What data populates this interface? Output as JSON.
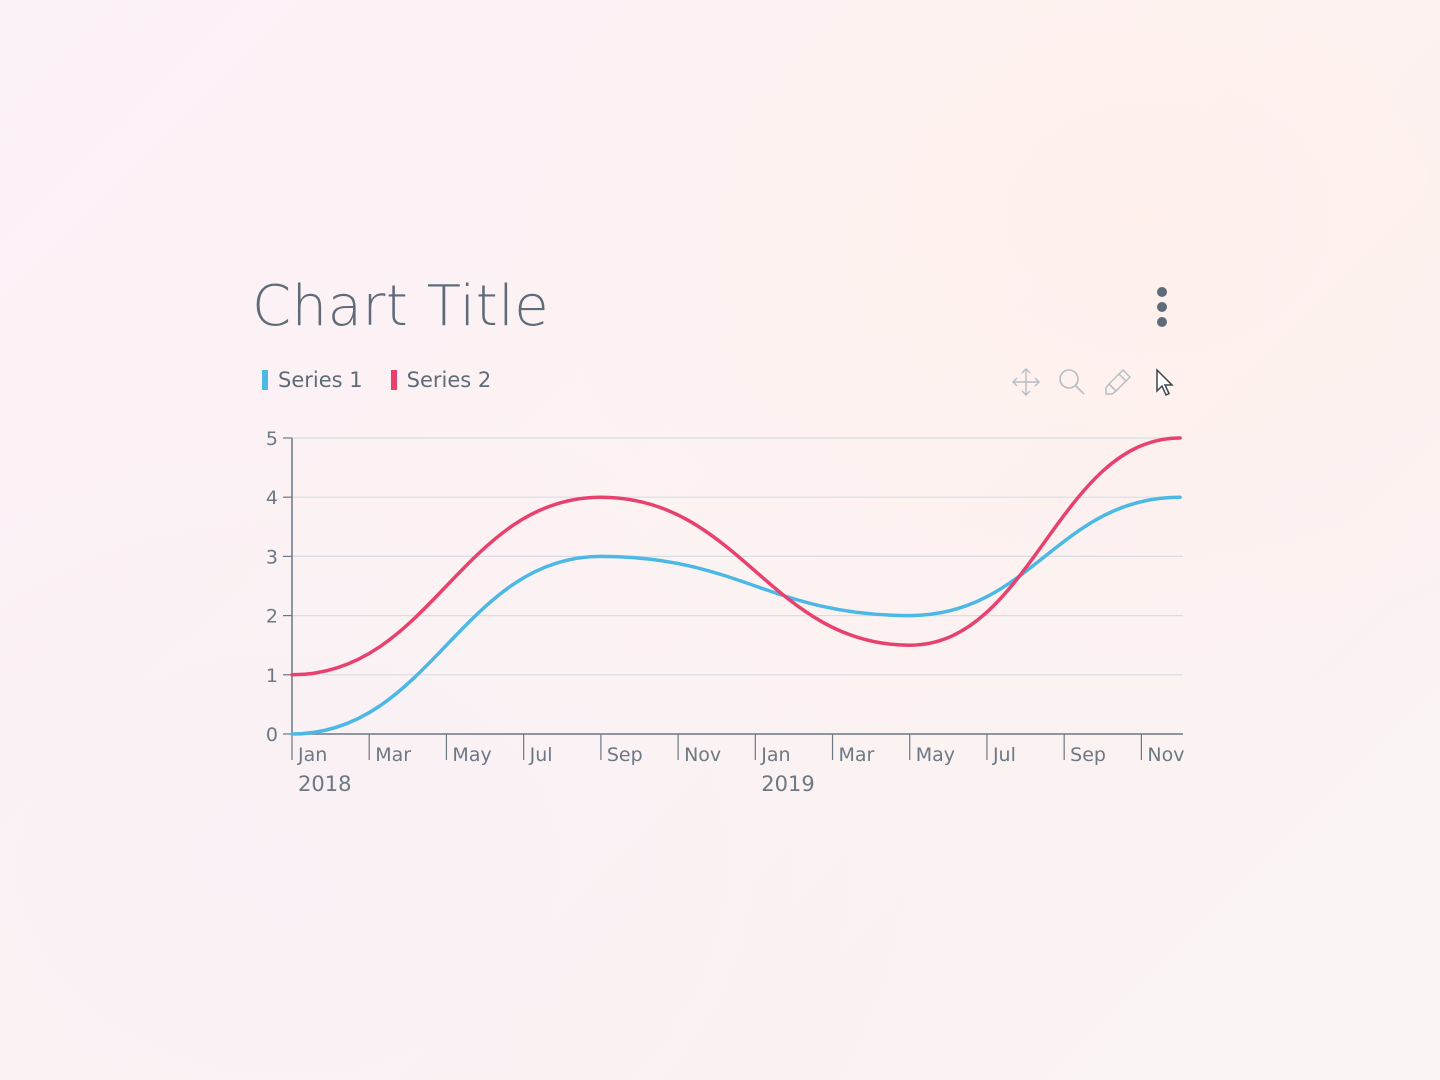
{
  "title": "Chart Title",
  "legend": [
    {
      "label": "Series 1",
      "color": "#4bb8e6"
    },
    {
      "label": "Series 2",
      "color": "#e8416e"
    }
  ],
  "toolbar": [
    "move-icon",
    "zoom-icon",
    "highlighter-icon",
    "cursor-icon"
  ],
  "chart_data": {
    "type": "line",
    "x": [
      "2018-01",
      "2018-03",
      "2018-05",
      "2018-07",
      "2018-09",
      "2018-11",
      "2019-01",
      "2019-03",
      "2019-05",
      "2019-07",
      "2019-09",
      "2019-11"
    ],
    "x_tick_labels": [
      "Jan",
      "Mar",
      "May",
      "Jul",
      "Sep",
      "Nov",
      "Jan",
      "Mar",
      "May",
      "Jul",
      "Sep",
      "Nov"
    ],
    "x_year_labels": [
      {
        "at": "2018-01",
        "label": "2018"
      },
      {
        "at": "2019-01",
        "label": "2019"
      }
    ],
    "series": [
      {
        "name": "Series 1",
        "color": "#4bb8e6",
        "points": [
          [
            "2018-01",
            0
          ],
          [
            "2018-09",
            3
          ],
          [
            "2019-05",
            2
          ],
          [
            "2019-12",
            4
          ]
        ]
      },
      {
        "name": "Series 2",
        "color": "#e8416e",
        "points": [
          [
            "2018-01",
            1
          ],
          [
            "2018-09",
            4
          ],
          [
            "2019-05",
            1.5
          ],
          [
            "2019-12",
            5
          ]
        ]
      }
    ],
    "y_ticks": [
      0,
      1,
      2,
      3,
      4,
      5
    ],
    "ylim": [
      0,
      5
    ],
    "xlim": [
      "2018-01",
      "2019-12"
    ],
    "grid": true,
    "legend_position": "top-left"
  }
}
